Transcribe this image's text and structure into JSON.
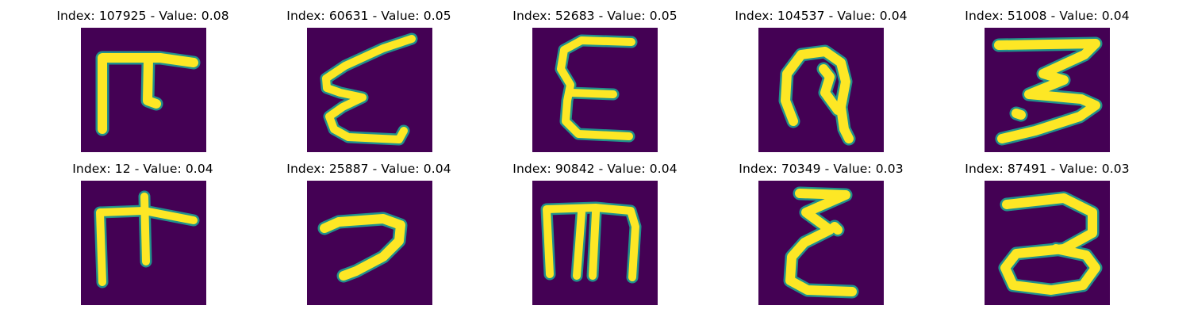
{
  "figure": {
    "panels": [
      {
        "index": "107925",
        "value": "0.08",
        "title": "Index: 107925 - Value: 0.08",
        "glyph": "glyph-tee"
      },
      {
        "index": "60631",
        "value": "0.05",
        "title": "Index: 60631 - Value: 0.05",
        "glyph": "glyph-zigzag"
      },
      {
        "index": "52683",
        "value": "0.05",
        "title": "Index: 52683 - Value: 0.05",
        "glyph": "glyph-epsilon"
      },
      {
        "index": "104537",
        "value": "0.04",
        "title": "Index: 104537 - Value: 0.04",
        "glyph": "glyph-loop"
      },
      {
        "index": "51008",
        "value": "0.04",
        "title": "Index: 51008 - Value: 0.04",
        "glyph": "glyph-three-flat"
      },
      {
        "index": "12",
        "value": "0.04",
        "title": "Index: 12 - Value: 0.04",
        "glyph": "glyph-tee-cross"
      },
      {
        "index": "25887",
        "value": "0.04",
        "title": "Index: 25887 - Value: 0.04",
        "glyph": "glyph-hook"
      },
      {
        "index": "90842",
        "value": "0.04",
        "title": "Index: 90842 - Value: 0.04",
        "glyph": "glyph-comb"
      },
      {
        "index": "70349",
        "value": "0.03",
        "title": "Index: 70349 - Value: 0.03",
        "glyph": "glyph-sigma"
      },
      {
        "index": "87491",
        "value": "0.03",
        "title": "Index: 87491 - Value: 0.03",
        "glyph": "glyph-three-round"
      }
    ]
  },
  "colors": {
    "background": "#440154",
    "stroke": "#fde725",
    "edge": "#21918c"
  }
}
